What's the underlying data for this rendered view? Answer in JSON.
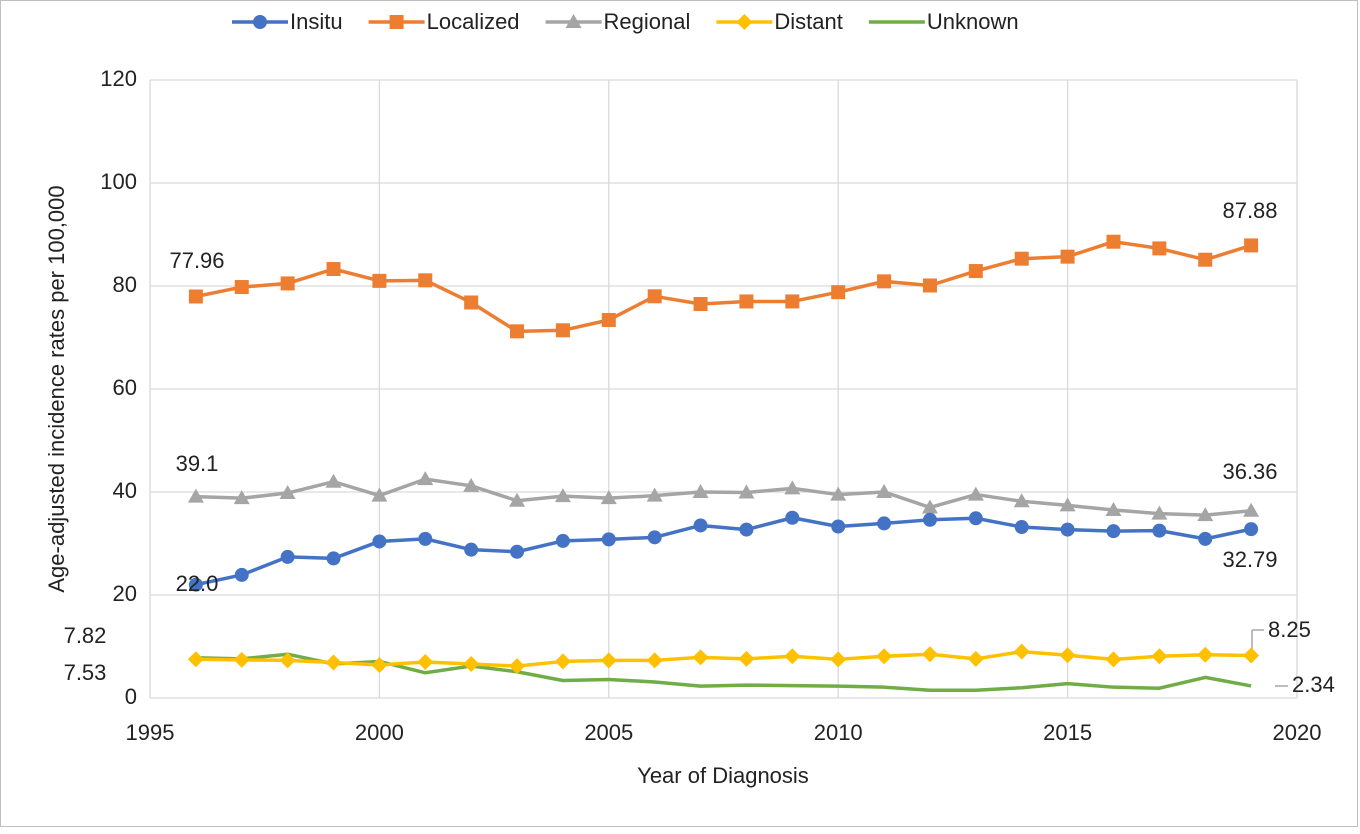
{
  "chart_data": {
    "type": "line",
    "x_label": "Year of Diagnosis",
    "y_label": "Age-adjusted incidence rates per 100,000",
    "x": [
      1996,
      1997,
      1998,
      1999,
      2000,
      2001,
      2002,
      2003,
      2004,
      2005,
      2006,
      2007,
      2008,
      2009,
      2010,
      2011,
      2012,
      2013,
      2014,
      2015,
      2016,
      2017,
      2018,
      2019
    ],
    "xlim": [
      1995,
      2020
    ],
    "xticks": [
      1995,
      2000,
      2005,
      2010,
      2015,
      2020
    ],
    "ylim": [
      0,
      120
    ],
    "yticks": [
      0,
      20,
      40,
      60,
      80,
      100,
      120
    ],
    "grid": true,
    "legend": "top",
    "series": [
      {
        "name": "Insitu",
        "color": "#4472c4",
        "marker": "circle",
        "values": [
          22.0,
          23.9,
          27.4,
          27.1,
          30.4,
          30.9,
          28.8,
          28.4,
          30.5,
          30.8,
          31.2,
          33.5,
          32.7,
          35.0,
          33.3,
          33.9,
          34.6,
          34.9,
          33.2,
          32.7,
          32.4,
          32.5,
          30.9,
          32.79
        ],
        "value_labels": [
          "22.0",
          null,
          null,
          null,
          null,
          null,
          null,
          null,
          null,
          null,
          null,
          null,
          null,
          null,
          null,
          null,
          null,
          null,
          null,
          null,
          null,
          null,
          null,
          "32.79"
        ]
      },
      {
        "name": "Localized",
        "color": "#ed7d31",
        "marker": "square",
        "values": [
          77.96,
          79.8,
          80.5,
          83.3,
          81.0,
          81.1,
          76.8,
          71.2,
          71.4,
          73.4,
          78.0,
          76.5,
          77.0,
          77.0,
          78.8,
          80.9,
          80.1,
          82.9,
          85.3,
          85.7,
          88.6,
          87.3,
          85.1,
          87.88
        ],
        "value_labels": [
          "77.96",
          null,
          null,
          null,
          null,
          null,
          null,
          null,
          null,
          null,
          null,
          null,
          null,
          null,
          null,
          null,
          null,
          null,
          null,
          null,
          null,
          null,
          null,
          "87.88"
        ]
      },
      {
        "name": "Regional",
        "color": "#a5a5a5",
        "marker": "triangle",
        "values": [
          39.1,
          38.8,
          39.8,
          42.0,
          39.3,
          42.5,
          41.2,
          38.3,
          39.2,
          38.8,
          39.3,
          40.0,
          39.9,
          40.7,
          39.5,
          40.0,
          37.0,
          39.5,
          38.2,
          37.4,
          36.5,
          35.8,
          35.5,
          36.36
        ],
        "value_labels": [
          "39.1",
          null,
          null,
          null,
          null,
          null,
          null,
          null,
          null,
          null,
          null,
          null,
          null,
          null,
          null,
          null,
          null,
          null,
          null,
          null,
          null,
          null,
          null,
          "36.36"
        ]
      },
      {
        "name": "Distant",
        "color": "#ffc000",
        "marker": "diamond",
        "values": [
          7.53,
          7.4,
          7.3,
          6.9,
          6.4,
          7.0,
          6.6,
          6.2,
          7.1,
          7.3,
          7.3,
          7.9,
          7.6,
          8.1,
          7.5,
          8.1,
          8.5,
          7.6,
          9.0,
          8.3,
          7.5,
          8.1,
          8.4,
          8.25
        ],
        "value_labels": [
          "7.53",
          null,
          null,
          null,
          null,
          null,
          null,
          null,
          null,
          null,
          null,
          null,
          null,
          null,
          null,
          null,
          null,
          null,
          null,
          null,
          null,
          null,
          null,
          "8.25"
        ]
      },
      {
        "name": "Unknown",
        "color": "#70ad47",
        "marker": "none",
        "values": [
          7.82,
          7.6,
          8.5,
          6.6,
          7.1,
          4.9,
          6.2,
          5.1,
          3.4,
          3.6,
          3.1,
          2.3,
          2.5,
          2.4,
          2.3,
          2.1,
          1.5,
          1.5,
          2.0,
          2.8,
          2.1,
          1.9,
          4.0,
          2.34
        ],
        "value_labels": [
          "7.82",
          null,
          null,
          null,
          null,
          null,
          null,
          null,
          null,
          null,
          null,
          null,
          null,
          null,
          null,
          null,
          null,
          null,
          null,
          null,
          null,
          null,
          null,
          "2.34"
        ]
      }
    ]
  }
}
